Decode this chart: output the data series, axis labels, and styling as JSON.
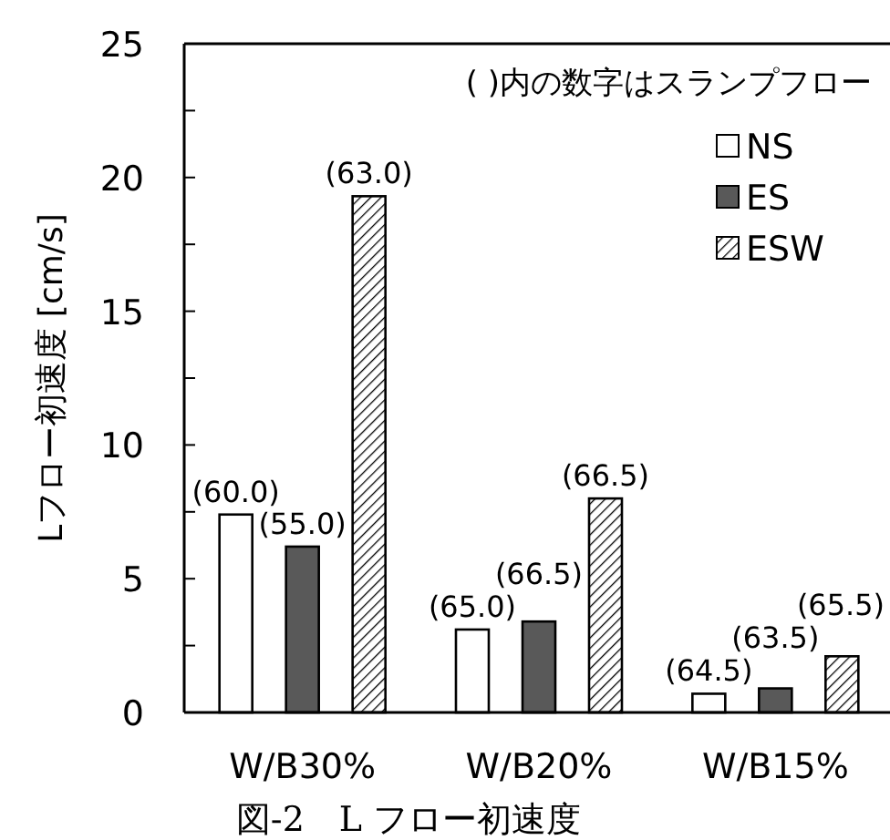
{
  "chart_data": {
    "type": "bar",
    "ylabel": "Lフロー初速度 [cm/s]",
    "categories": [
      "W/B30%",
      "W/B20%",
      "W/B15%"
    ],
    "series": [
      {
        "name": "NS",
        "color": "#ffffff",
        "values": [
          7.4,
          3.1,
          0.7
        ]
      },
      {
        "name": "ES",
        "color": "#595959",
        "values": [
          6.2,
          3.4,
          0.9
        ]
      },
      {
        "name": "ESW",
        "color": "#000000",
        "values": [
          19.3,
          8.0,
          2.1
        ]
      }
    ],
    "ylim": [
      0,
      25
    ],
    "yticks": [
      0,
      {
        "value": 2.5,
        "label": null
      },
      5,
      {
        "value": 7.5,
        "label": null
      },
      10,
      {
        "value": 12.5,
        "label": null
      },
      15,
      {
        "value": 17.5,
        "label": null
      },
      20,
      {
        "value": 22.5,
        "label": null
      },
      25
    ],
    "legend": "top right",
    "grid": false,
    "annotations": [
      "( )内の数字はスランプフロー",
      "図-2　L フロー初速度",
      "(60.0)",
      "(55.0)",
      "(63.0)",
      "(65.0)",
      "(66.5)",
      "(66.5)",
      "(64.5)",
      "(63.5)",
      "(65.5)"
    ]
  }
}
